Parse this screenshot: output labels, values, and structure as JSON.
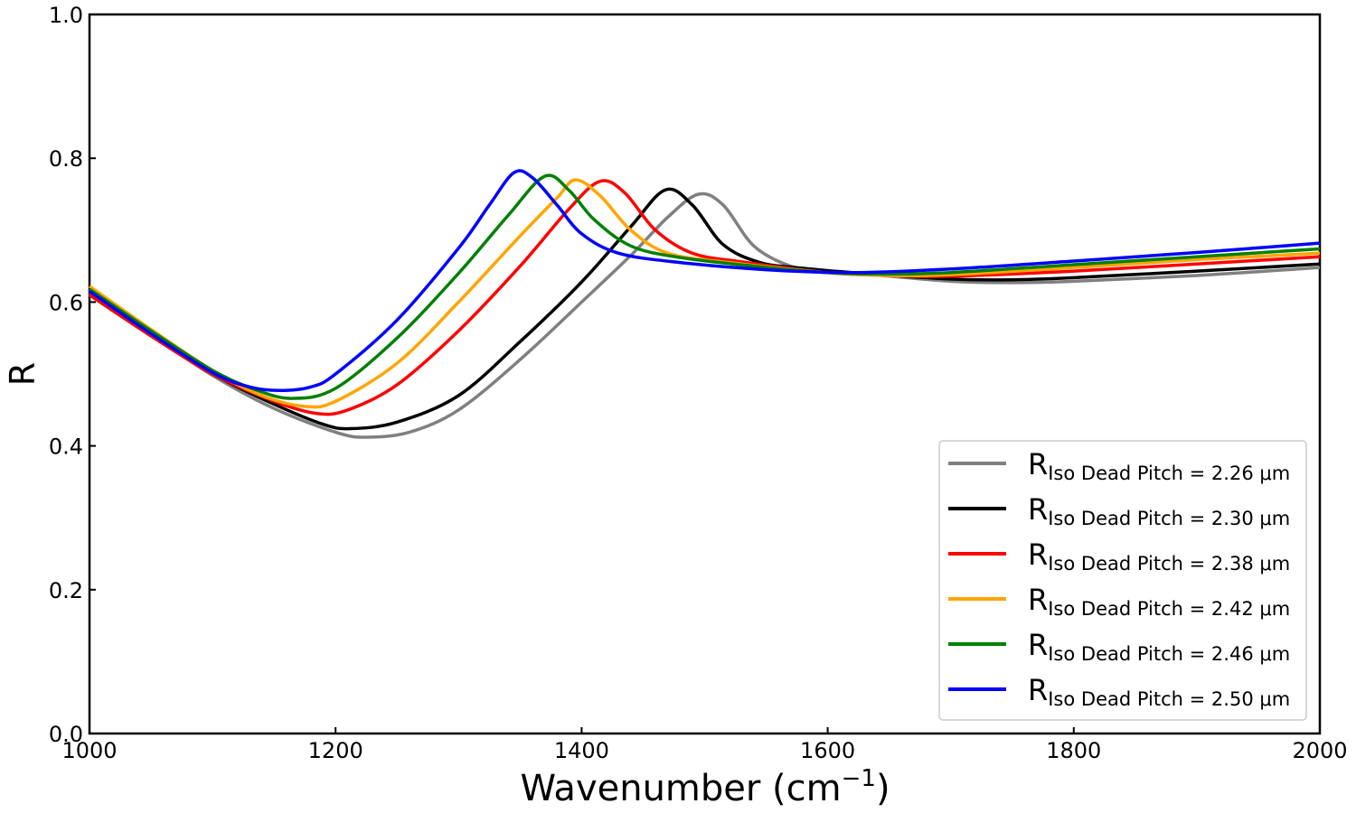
{
  "chart_data": {
    "type": "line",
    "xlabel_base": "Wavenumber (cm",
    "xlabel_sup": "−1",
    "xlabel_close": ")",
    "ylabel": "R",
    "xlim": [
      1000,
      2000
    ],
    "ylim": [
      0.0,
      1.0
    ],
    "xticks": [
      1000,
      1200,
      1400,
      1600,
      1800,
      2000
    ],
    "yticks": [
      0.0,
      0.2,
      0.4,
      0.6,
      0.8,
      1.0
    ],
    "xtick_labels": [
      "1000",
      "1200",
      "1400",
      "1600",
      "1800",
      "2000"
    ],
    "ytick_labels": [
      "0.0",
      "0.2",
      "0.4",
      "0.6",
      "0.8",
      "1.0"
    ],
    "grid": false,
    "legend_position": "bottom-right",
    "legend_base": "R",
    "legend_sub": "Iso Dead Pitch",
    "series": [
      {
        "label_value": "=  2.26 μm",
        "color": "#808080",
        "x": [
          1000,
          1050,
          1100,
          1150,
          1200,
          1225,
          1260,
          1300,
          1350,
          1400,
          1440,
          1470,
          1495,
          1515,
          1540,
          1570,
          1600,
          1650,
          1700,
          1750,
          1800,
          1900,
          2000
        ],
        "y": [
          0.612,
          0.555,
          0.498,
          0.452,
          0.419,
          0.412,
          0.419,
          0.45,
          0.52,
          0.6,
          0.665,
          0.718,
          0.75,
          0.735,
          0.678,
          0.65,
          0.643,
          0.636,
          0.629,
          0.627,
          0.629,
          0.637,
          0.648
        ]
      },
      {
        "label_value": "=  2.30 μm",
        "color": "#000000",
        "x": [
          1000,
          1050,
          1100,
          1150,
          1190,
          1212,
          1250,
          1300,
          1350,
          1400,
          1440,
          1468,
          1490,
          1515,
          1545,
          1580,
          1620,
          1700,
          1750,
          1800,
          1900,
          2000
        ],
        "y": [
          0.61,
          0.553,
          0.5,
          0.458,
          0.43,
          0.424,
          0.433,
          0.47,
          0.545,
          0.628,
          0.705,
          0.756,
          0.735,
          0.68,
          0.655,
          0.647,
          0.641,
          0.632,
          0.631,
          0.634,
          0.643,
          0.653
        ]
      },
      {
        "label_value": "=  2.38 μm",
        "color": "#ff0000",
        "x": [
          1000,
          1050,
          1100,
          1150,
          1185,
          1210,
          1250,
          1300,
          1350,
          1390,
          1415,
          1435,
          1460,
          1490,
          1530,
          1600,
          1650,
          1700,
          1800,
          1900,
          2000
        ],
        "y": [
          0.61,
          0.553,
          0.5,
          0.462,
          0.445,
          0.45,
          0.485,
          0.56,
          0.65,
          0.73,
          0.768,
          0.752,
          0.7,
          0.668,
          0.656,
          0.641,
          0.637,
          0.636,
          0.643,
          0.653,
          0.663
        ]
      },
      {
        "label_value": "=  2.42 μm",
        "color": "#ffa500",
        "x": [
          1000,
          1050,
          1100,
          1140,
          1175,
          1200,
          1250,
          1300,
          1350,
          1380,
          1395,
          1415,
          1440,
          1470,
          1520,
          1600,
          1650,
          1700,
          1800,
          1900,
          2000
        ],
        "y": [
          0.622,
          0.562,
          0.505,
          0.47,
          0.455,
          0.462,
          0.515,
          0.6,
          0.692,
          0.745,
          0.77,
          0.748,
          0.7,
          0.668,
          0.655,
          0.641,
          0.637,
          0.638,
          0.648,
          0.659,
          0.668
        ]
      },
      {
        "label_value": "=  2.46 μm",
        "color": "#008000",
        "x": [
          1000,
          1050,
          1100,
          1135,
          1165,
          1200,
          1250,
          1300,
          1340,
          1370,
          1390,
          1410,
          1440,
          1480,
          1540,
          1600,
          1650,
          1700,
          1800,
          1900,
          2000
        ],
        "y": [
          0.618,
          0.56,
          0.505,
          0.478,
          0.466,
          0.48,
          0.55,
          0.64,
          0.72,
          0.775,
          0.755,
          0.715,
          0.678,
          0.662,
          0.65,
          0.641,
          0.639,
          0.641,
          0.652,
          0.663,
          0.674
        ]
      },
      {
        "label_value": "=  2.50 μm",
        "color": "#0000ff",
        "x": [
          1000,
          1050,
          1100,
          1130,
          1155,
          1180,
          1200,
          1250,
          1300,
          1325,
          1345,
          1360,
          1380,
          1400,
          1430,
          1480,
          1550,
          1620,
          1700,
          1800,
          1900,
          2000
        ],
        "y": [
          0.615,
          0.556,
          0.502,
          0.482,
          0.477,
          0.482,
          0.5,
          0.575,
          0.675,
          0.735,
          0.78,
          0.773,
          0.735,
          0.695,
          0.668,
          0.655,
          0.645,
          0.641,
          0.646,
          0.657,
          0.669,
          0.682
        ]
      }
    ]
  }
}
